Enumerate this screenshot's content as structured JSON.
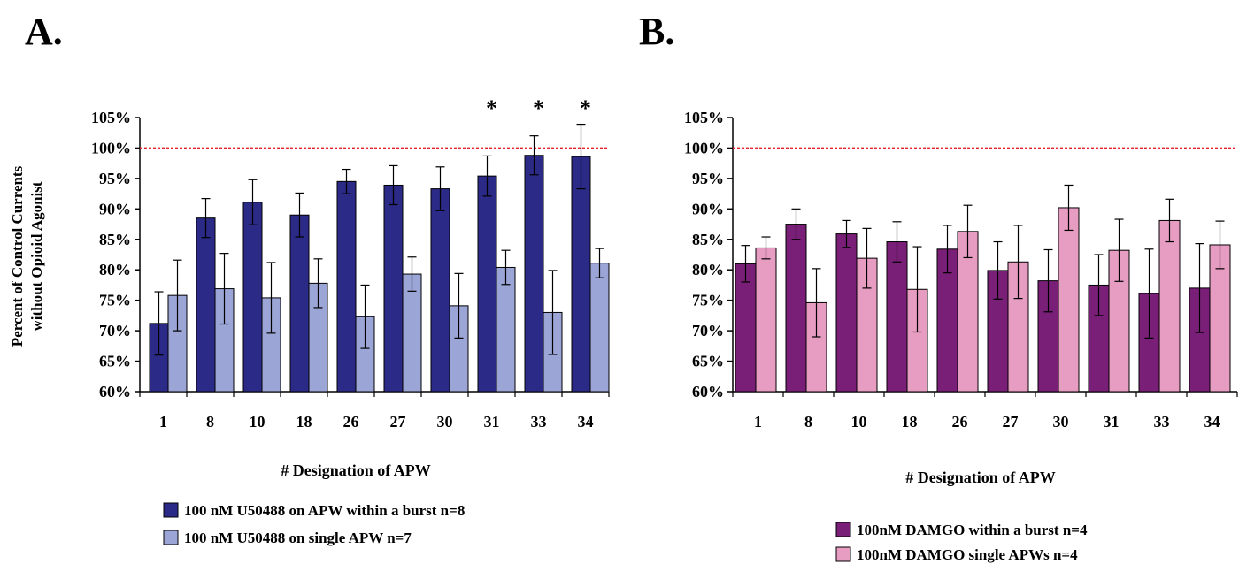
{
  "chart_data": [
    {
      "panel_label": "A.",
      "type": "bar",
      "categories": [
        "1",
        "8",
        "10",
        "18",
        "26",
        "27",
        "30",
        "31",
        "33",
        "34"
      ],
      "ylabel": [
        "Percent of Control Currents",
        "without Opioid Agonist"
      ],
      "xlabel": "# Designation of APW",
      "ylim": [
        60,
        105
      ],
      "yticks": [
        "60%",
        "65%",
        "70%",
        "75%",
        "80%",
        "85%",
        "90%",
        "95%",
        "100%",
        "105%"
      ],
      "reference_line": 100,
      "reference_color": "#e8202a",
      "significance_marker": "*",
      "significant_categories": [
        "31",
        "33",
        "34"
      ],
      "legend_position": "bottom-left",
      "series": [
        {
          "name": "100 nM U50488 on APW within a burst n=8",
          "color": "#2b2a86",
          "values": [
            71.2,
            88.5,
            91.1,
            89.0,
            94.5,
            93.9,
            93.3,
            95.4,
            98.8,
            98.6
          ],
          "errors": [
            5.2,
            3.2,
            3.7,
            3.6,
            2.0,
            3.2,
            3.6,
            3.3,
            3.2,
            5.3
          ]
        },
        {
          "name": "100 nM U50488 on single APW n=7",
          "color": "#9ba5d6",
          "values": [
            75.8,
            76.9,
            75.4,
            77.8,
            72.3,
            79.3,
            74.1,
            80.4,
            73.0,
            81.1
          ],
          "errors": [
            5.8,
            5.8,
            5.8,
            4.0,
            5.2,
            2.8,
            5.3,
            2.8,
            6.9,
            2.4
          ]
        }
      ]
    },
    {
      "panel_label": "B.",
      "type": "bar",
      "categories": [
        "1",
        "8",
        "10",
        "18",
        "26",
        "27",
        "30",
        "31",
        "33",
        "34"
      ],
      "xlabel": "# Designation of APW",
      "ylim": [
        60,
        105
      ],
      "yticks": [
        "60%",
        "65%",
        "70%",
        "75%",
        "80%",
        "85%",
        "90%",
        "95%",
        "100%",
        "105%"
      ],
      "reference_line": 100,
      "reference_color": "#e8202a",
      "legend_position": "bottom-right",
      "series": [
        {
          "name": "100nM DAMGO within a burst n=4",
          "color": "#7a1f78",
          "values": [
            81.0,
            87.5,
            85.9,
            84.6,
            83.4,
            79.9,
            78.2,
            77.5,
            76.1,
            77.0
          ],
          "errors": [
            3.0,
            2.5,
            2.2,
            3.3,
            3.9,
            4.7,
            5.1,
            5.0,
            7.3,
            7.3
          ]
        },
        {
          "name": "100nM DAMGO single APWs n=4",
          "color": "#e79cc2",
          "values": [
            83.6,
            74.6,
            81.9,
            76.8,
            86.3,
            81.3,
            90.2,
            83.2,
            88.1,
            84.1
          ],
          "errors": [
            1.8,
            5.6,
            4.9,
            7.0,
            4.3,
            6.0,
            3.7,
            5.1,
            3.5,
            3.9
          ]
        }
      ]
    }
  ]
}
